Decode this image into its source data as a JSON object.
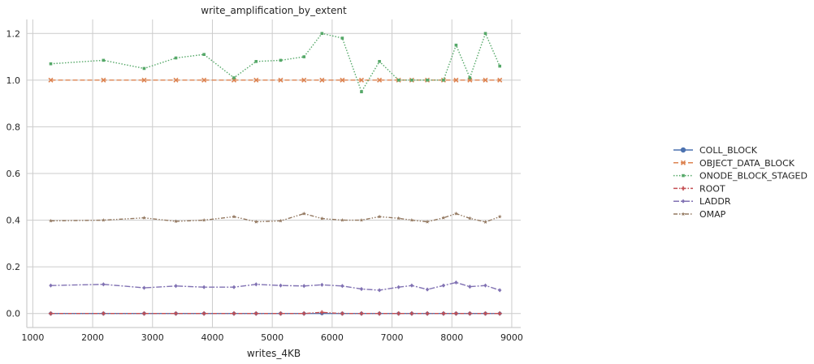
{
  "chart_data": {
    "type": "line",
    "title": "write_amplification_by_extent",
    "xlabel": "writes_4KB",
    "ylabel": "",
    "xlim": [
      900,
      9150
    ],
    "ylim": [
      -0.06,
      1.26
    ],
    "xticks": [
      1000,
      2000,
      3000,
      4000,
      5000,
      6000,
      7000,
      8000,
      9000
    ],
    "yticks": [
      0.0,
      0.2,
      0.4,
      0.6,
      0.8,
      1.0,
      1.2
    ],
    "x": [
      1300,
      2180,
      2860,
      3390,
      3860,
      4360,
      4730,
      5140,
      5530,
      5830,
      6170,
      6490,
      6790,
      7110,
      7330,
      7590,
      7860,
      8070,
      8300,
      8560,
      8800
    ],
    "grid": true,
    "legend_position": "center-right",
    "series": [
      {
        "name": "COLL_BLOCK",
        "color": "#4c72b0",
        "marker": "circle",
        "dash": "solid",
        "values": [
          0,
          0,
          0,
          0,
          0,
          0,
          0,
          0,
          0,
          0,
          0,
          0,
          0,
          0,
          0,
          0,
          0,
          0,
          0,
          0,
          0
        ]
      },
      {
        "name": "OBJECT_DATA_BLOCK",
        "color": "#dd8452",
        "marker": "x",
        "dash": "dashed",
        "values": [
          1.0,
          1.0,
          1.0,
          1.0,
          1.0,
          1.0,
          1.0,
          1.0,
          1.0,
          1.0,
          1.0,
          1.0,
          1.0,
          1.0,
          1.0,
          1.0,
          1.0,
          1.0,
          1.0,
          1.0,
          1.0
        ]
      },
      {
        "name": "ONODE_BLOCK_STAGED",
        "color": "#55a868",
        "marker": "square",
        "dash": "dotted",
        "values": [
          1.07,
          1.085,
          1.05,
          1.095,
          1.11,
          1.01,
          1.08,
          1.085,
          1.1,
          1.2,
          1.18,
          0.95,
          1.08,
          1.0,
          1.0,
          1.0,
          1.0,
          1.15,
          1.01,
          1.2,
          1.06
        ]
      },
      {
        "name": "ROOT",
        "color": "#c44e52",
        "marker": "plus",
        "dash": "dashdot",
        "values": [
          0,
          0,
          0,
          0,
          0,
          0,
          0,
          0,
          0,
          0.005,
          0,
          0,
          0,
          0,
          0,
          0,
          0,
          0,
          0,
          0,
          0
        ]
      },
      {
        "name": "LADDR",
        "color": "#8172b3",
        "marker": "diamond",
        "dash": "longdashdot",
        "values": [
          0.12,
          0.125,
          0.11,
          0.118,
          0.113,
          0.113,
          0.125,
          0.12,
          0.118,
          0.123,
          0.118,
          0.105,
          0.1,
          0.113,
          0.12,
          0.103,
          0.12,
          0.133,
          0.115,
          0.12,
          0.1
        ]
      },
      {
        "name": "OMAP",
        "color": "#937860",
        "marker": "star",
        "dash": "dashdotdot",
        "values": [
          0.397,
          0.4,
          0.41,
          0.395,
          0.4,
          0.415,
          0.393,
          0.397,
          0.428,
          0.407,
          0.4,
          0.4,
          0.415,
          0.408,
          0.4,
          0.393,
          0.41,
          0.428,
          0.408,
          0.392,
          0.415
        ]
      }
    ]
  }
}
